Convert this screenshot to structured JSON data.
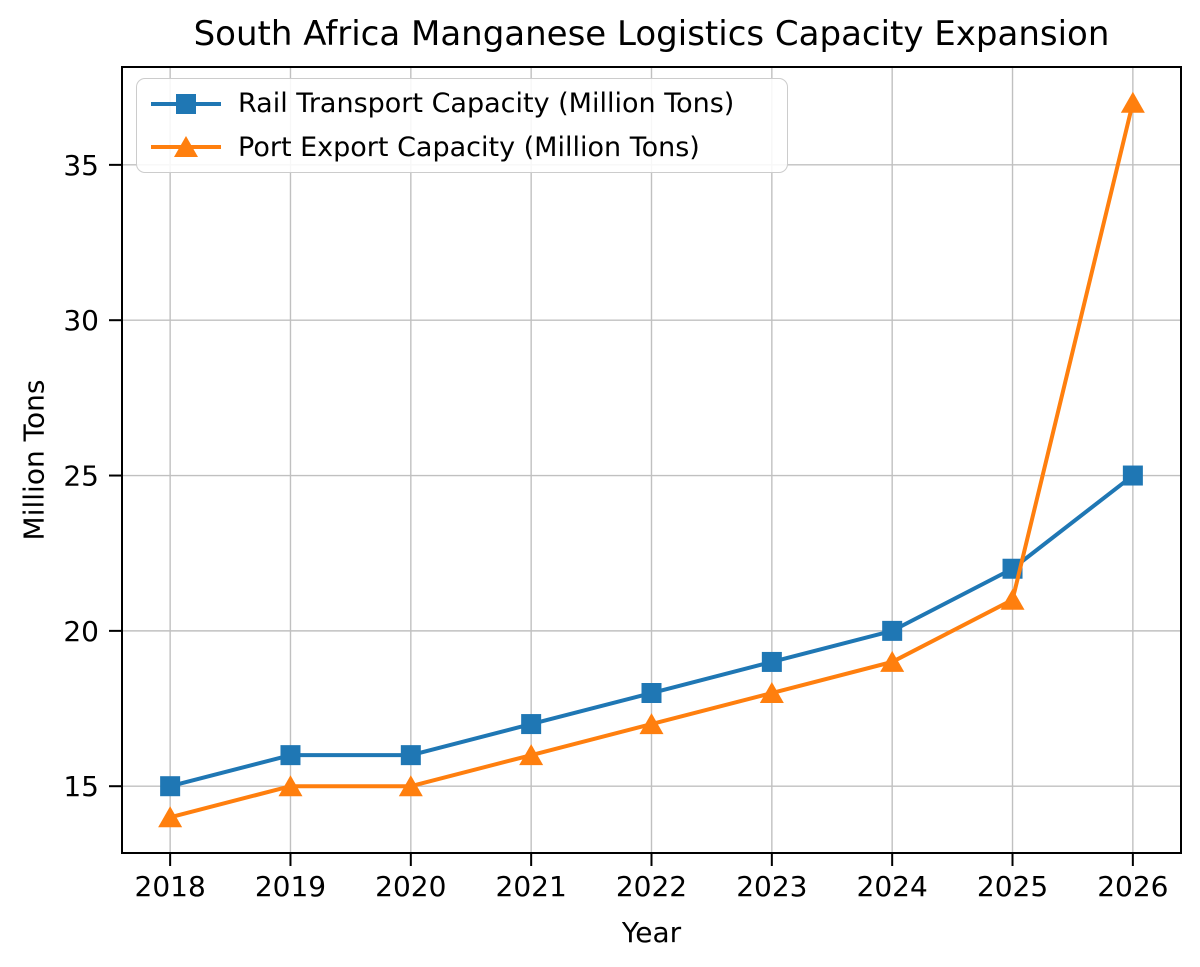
{
  "chart_data": {
    "type": "line",
    "title": "South Africa Manganese Logistics Capacity Expansion",
    "xlabel": "Year",
    "ylabel": "Million Tons",
    "x": [
      2018,
      2019,
      2020,
      2021,
      2022,
      2023,
      2024,
      2025,
      2026
    ],
    "series": [
      {
        "name": "Rail Transport Capacity (Million Tons)",
        "values": [
          15,
          16,
          16,
          17,
          18,
          19,
          20,
          22,
          25
        ],
        "color": "#1f77b4",
        "marker": "square"
      },
      {
        "name": "Port Export Capacity (Million Tons)",
        "values": [
          14,
          15,
          15,
          16,
          17,
          18,
          19,
          21,
          37
        ],
        "color": "#ff7f0e",
        "marker": "triangle"
      }
    ],
    "xticks": [
      2018,
      2019,
      2020,
      2021,
      2022,
      2023,
      2024,
      2025,
      2026
    ],
    "yticks": [
      15,
      20,
      25,
      30,
      35
    ],
    "xlim": [
      2017.6,
      2026.4
    ],
    "ylim": [
      12.85,
      38.15
    ],
    "grid": true,
    "legend_position": "upper-left",
    "colors": {
      "grid": "#c0c0c0",
      "spine": "#000000",
      "tick": "#000000",
      "text": "#000000",
      "legend_border": "#cccccc",
      "background": "#ffffff"
    }
  }
}
